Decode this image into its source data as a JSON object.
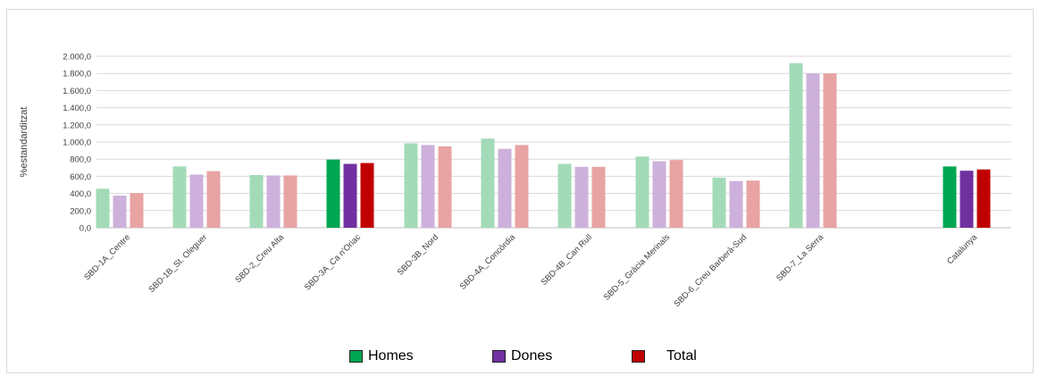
{
  "chart_data": {
    "type": "bar",
    "ylabel": "%estandarditzat",
    "ylim": [
      0,
      2000
    ],
    "ytick_step": 200,
    "yticks": [
      "0,0",
      "200,0",
      "400,0",
      "600,0",
      "800,0",
      "1.000,0",
      "1.200,0",
      "1.400,0",
      "1.600,0",
      "1.800,0",
      "2.000,0"
    ],
    "grid": true,
    "legend_position": "bottom",
    "categories": [
      "SBD-1A_Centre",
      "SBD-1B_St. Oleguer",
      "SBD-2_Creu Alta",
      "SBD-3A_Ca n'Oriac",
      "SBD-3B_Nord",
      "SBD-4A_Concòrdia",
      "SBD-4B_Can Rull",
      "SBD-5_Gràcia Merinals",
      "SBD-6_Creu Barberà-Sud",
      "SBD-7_La Serra",
      "Catalunya"
    ],
    "highlighted_categories": [
      "SBD-3A_Ca n'Oriac",
      "Catalunya"
    ],
    "series": [
      {
        "name": "Homes",
        "color": "#00a651",
        "faded_color": "#a3dbb8",
        "values": [
          455,
          715,
          615,
          795,
          985,
          1040,
          745,
          830,
          585,
          1920,
          715
        ]
      },
      {
        "name": "Dones",
        "color": "#7030a0",
        "faded_color": "#cdb1dc",
        "values": [
          375,
          620,
          610,
          745,
          965,
          920,
          710,
          775,
          545,
          1800,
          665
        ]
      },
      {
        "name": "Total",
        "color": "#c00000",
        "faded_color": "#e8a3a3",
        "values": [
          405,
          660,
          610,
          755,
          950,
          965,
          710,
          790,
          550,
          1800,
          680
        ]
      }
    ]
  }
}
